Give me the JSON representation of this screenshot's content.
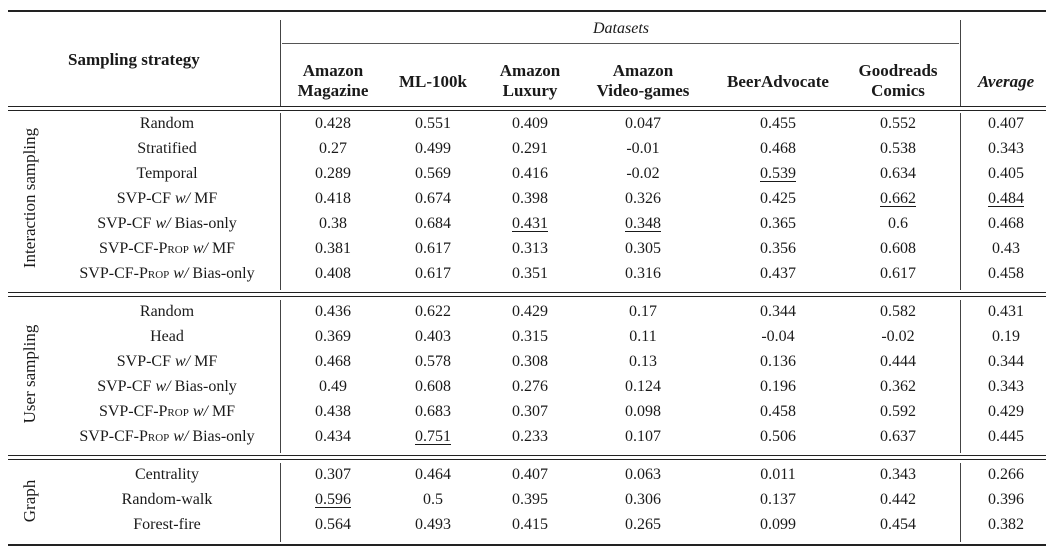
{
  "header": {
    "sampling_strategy": "Sampling strategy",
    "datasets": "Datasets",
    "columns": [
      {
        "line1": "Amazon",
        "line2": "Magazine"
      },
      {
        "line1": "ML-100k",
        "line2": ""
      },
      {
        "line1": "Amazon",
        "line2": "Luxury"
      },
      {
        "line1": "Amazon",
        "line2": "Video-games"
      },
      {
        "line1": "BeerAdvocate",
        "line2": ""
      },
      {
        "line1": "Goodreads",
        "line2": "Comics"
      }
    ],
    "average": "Average"
  },
  "groups": [
    {
      "label": "Interaction sampling",
      "rows": [
        {
          "name": "Random",
          "values": [
            "0.428",
            "0.551",
            "0.409",
            "0.047",
            "0.455",
            "0.552",
            "0.407"
          ],
          "underline": []
        },
        {
          "name": "Stratified",
          "values": [
            "0.27",
            "0.499",
            "0.291",
            "-0.01",
            "0.468",
            "0.538",
            "0.343"
          ],
          "underline": []
        },
        {
          "name": "Temporal",
          "values": [
            "0.289",
            "0.569",
            "0.416",
            "-0.02",
            "0.539",
            "0.634",
            "0.405"
          ],
          "underline": [
            4
          ]
        },
        {
          "name_parts": [
            "SVP-CF ",
            "w/",
            " MF"
          ],
          "values": [
            "0.418",
            "0.674",
            "0.398",
            "0.326",
            "0.425",
            "0.662",
            "0.484"
          ],
          "underline": [
            5,
            6
          ]
        },
        {
          "name_parts": [
            "SVP-CF ",
            "w/",
            " Bias-only"
          ],
          "values": [
            "0.38",
            "0.684",
            "0.431",
            "0.348",
            "0.365",
            "0.6",
            "0.468"
          ],
          "underline": [
            2,
            3
          ]
        },
        {
          "name_parts": [
            "SVP-CF-",
            "Prop",
            " ",
            "w/",
            " MF"
          ],
          "values": [
            "0.381",
            "0.617",
            "0.313",
            "0.305",
            "0.356",
            "0.608",
            "0.43"
          ],
          "underline": []
        },
        {
          "name_parts": [
            "SVP-CF-",
            "Prop",
            " ",
            "w/",
            " Bias-only"
          ],
          "values": [
            "0.408",
            "0.617",
            "0.351",
            "0.316",
            "0.437",
            "0.617",
            "0.458"
          ],
          "underline": []
        }
      ]
    },
    {
      "label": "User sampling",
      "rows": [
        {
          "name": "Random",
          "values": [
            "0.436",
            "0.622",
            "0.429",
            "0.17",
            "0.344",
            "0.582",
            "0.431"
          ],
          "underline": []
        },
        {
          "name": "Head",
          "values": [
            "0.369",
            "0.403",
            "0.315",
            "0.11",
            "-0.04",
            "-0.02",
            "0.19"
          ],
          "underline": []
        },
        {
          "name_parts": [
            "SVP-CF ",
            "w/",
            " MF"
          ],
          "values": [
            "0.468",
            "0.578",
            "0.308",
            "0.13",
            "0.136",
            "0.444",
            "0.344"
          ],
          "underline": []
        },
        {
          "name_parts": [
            "SVP-CF ",
            "w/",
            " Bias-only"
          ],
          "values": [
            "0.49",
            "0.608",
            "0.276",
            "0.124",
            "0.196",
            "0.362",
            "0.343"
          ],
          "underline": []
        },
        {
          "name_parts": [
            "SVP-CF-",
            "Prop",
            " ",
            "w/",
            " MF"
          ],
          "values": [
            "0.438",
            "0.683",
            "0.307",
            "0.098",
            "0.458",
            "0.592",
            "0.429"
          ],
          "underline": []
        },
        {
          "name_parts": [
            "SVP-CF-",
            "Prop",
            " ",
            "w/",
            " Bias-only"
          ],
          "values": [
            "0.434",
            "0.751",
            "0.233",
            "0.107",
            "0.506",
            "0.637",
            "0.445"
          ],
          "underline": [
            1
          ]
        }
      ]
    },
    {
      "label": "Graph",
      "rows": [
        {
          "name": "Centrality",
          "values": [
            "0.307",
            "0.464",
            "0.407",
            "0.063",
            "0.011",
            "0.343",
            "0.266"
          ],
          "underline": []
        },
        {
          "name": "Random-walk",
          "values": [
            "0.596",
            "0.5",
            "0.395",
            "0.306",
            "0.137",
            "0.442",
            "0.396"
          ],
          "underline": [
            0
          ]
        },
        {
          "name": "Forest-fire",
          "values": [
            "0.564",
            "0.493",
            "0.415",
            "0.265",
            "0.099",
            "0.454",
            "0.382"
          ],
          "underline": []
        }
      ]
    }
  ]
}
